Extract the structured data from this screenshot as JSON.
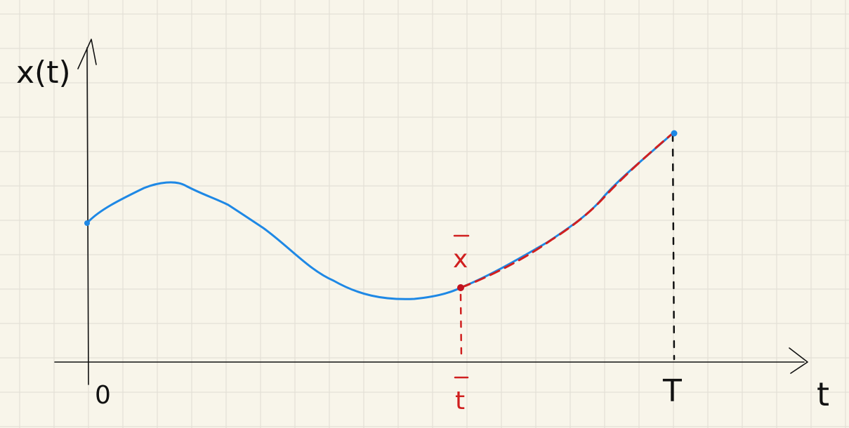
{
  "labels": {
    "y_axis": "x(t)",
    "x_axis": "t",
    "origin": "0",
    "t_bar": "t",
    "x_bar": "x",
    "end_time": "T"
  },
  "colors": {
    "background": "#f8f5ea",
    "grid": "#e3e0d6",
    "ink": "#111111",
    "curve": "#1e88e5",
    "highlight": "#d01f1f"
  },
  "icons": {
    "x_axis_arrow": "arrow-right-icon",
    "y_axis_arrow": "arrow-up-icon"
  }
}
